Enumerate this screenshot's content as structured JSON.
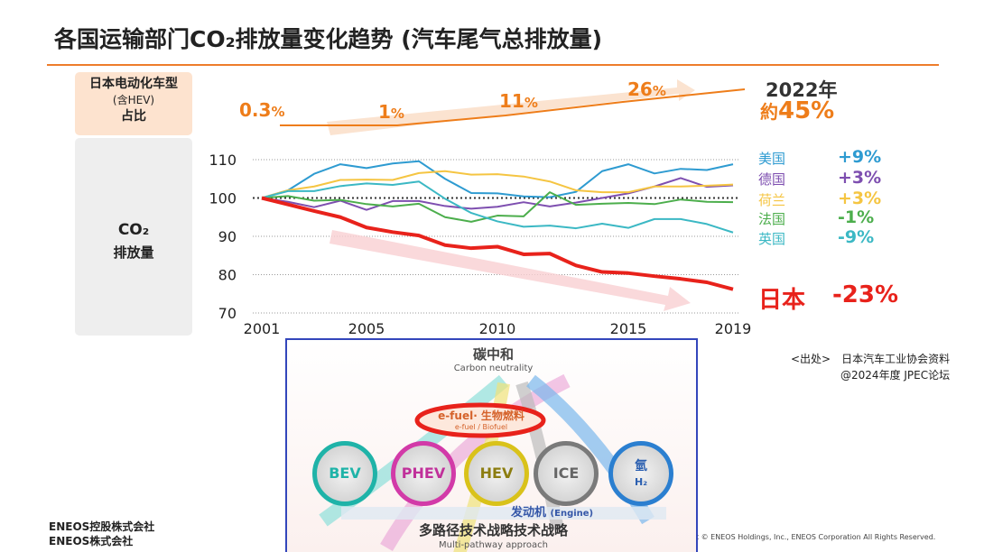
{
  "title": "各国运输部门CO₂排放量变化趋势 (汽车尾气总排放量)",
  "share_panel": {
    "label_line1": "日本电动化车型",
    "label_line2": "(含HEV)",
    "label_line3": "占比",
    "milestones": [
      {
        "value": "0.3",
        "unit": "%"
      },
      {
        "value": "1",
        "unit": "%"
      },
      {
        "value": "11",
        "unit": "%"
      },
      {
        "value": "26",
        "unit": "%"
      }
    ],
    "final_year": "2022年",
    "final_prefix": "約",
    "final_value": "45%"
  },
  "co2_panel": {
    "label_line1": "CO₂",
    "label_line2": "排放量"
  },
  "chart_data": {
    "type": "line",
    "xlim": [
      2001,
      2019
    ],
    "ylim": [
      70,
      110
    ],
    "x_ticks": [
      "2001",
      "2005",
      "2010",
      "2015",
      "2019"
    ],
    "y_ticks": [
      "110",
      "100",
      "90",
      "80",
      "70"
    ],
    "grid": "horizontal dotted",
    "legend_placement": "right",
    "x": [
      2001,
      2002,
      2003,
      2004,
      2005,
      2006,
      2007,
      2008,
      2009,
      2010,
      2011,
      2012,
      2013,
      2014,
      2015,
      2016,
      2017,
      2018,
      2019
    ],
    "series": [
      {
        "name": "美国",
        "change": "+9%",
        "color": "#2e9bd1",
        "values": [
          100,
          102,
          106.3,
          108.8,
          107.8,
          109,
          109.6,
          105,
          101.3,
          101.2,
          100.4,
          100.2,
          101.6,
          107,
          108.8,
          106.4,
          107.6,
          107.3,
          108.8
        ]
      },
      {
        "name": "德国",
        "change": "+3%",
        "color": "#7e4fb0",
        "values": [
          100,
          99,
          97.6,
          99.3,
          96.9,
          99.2,
          99.2,
          97.9,
          97.2,
          97.7,
          98.9,
          97.8,
          98.8,
          100,
          101.2,
          103,
          105.2,
          102.9,
          103.3
        ]
      },
      {
        "name": "荷兰",
        "change": "+3%",
        "color": "#f5c542",
        "values": [
          100,
          102,
          103,
          104.7,
          104.8,
          104.7,
          106.5,
          107,
          106.1,
          106.2,
          105.6,
          104.3,
          102,
          101.5,
          101.5,
          103,
          103,
          103.2,
          103.5
        ]
      },
      {
        "name": "法国",
        "change": "-1%",
        "color": "#4cae4c",
        "values": [
          100,
          100.5,
          99.3,
          99.5,
          98.4,
          97.8,
          98.5,
          95,
          93.8,
          95.4,
          95.2,
          101.5,
          98.2,
          98.5,
          98.7,
          98.4,
          99.6,
          99,
          98.9
        ]
      },
      {
        "name": "英国",
        "change": "-9%",
        "color": "#3bb8c4",
        "values": [
          100,
          101.8,
          101.8,
          103.1,
          103.8,
          103.4,
          104.3,
          99.8,
          96.1,
          93.9,
          92.5,
          92.8,
          92.1,
          93.3,
          92.2,
          94.5,
          94.5,
          93.2,
          91
        ]
      },
      {
        "name": "日本",
        "change": "-23%",
        "color": "#e8221b",
        "values": [
          100,
          98.3,
          96.6,
          95,
          92.3,
          91.1,
          90.2,
          87.7,
          86.9,
          87.3,
          85.3,
          85.5,
          82.4,
          80.7,
          80.4,
          79.6,
          78.9,
          78,
          76.2
        ]
      }
    ]
  },
  "source": {
    "line1": "<出处>　日本汽车工业协会资料",
    "line2": "@2024年度 JPEC论坛"
  },
  "diagram": {
    "goal": "碳中和",
    "goal_en": "Carbon neutrality",
    "fuel": "e-fuel· 生物燃料",
    "fuel_en": "e-fuel / Biofuel",
    "pathways": [
      {
        "label": "BEV",
        "color": "#1fb3a8"
      },
      {
        "label": "PHEV",
        "color": "#d23aa8"
      },
      {
        "label": "HEV",
        "color": "#d9c21a"
      },
      {
        "label": "ICE",
        "color": "#7a7a7a"
      },
      {
        "label": "氫",
        "sub": "H₂",
        "color": "#2b7fd0"
      }
    ],
    "engine": "发动机",
    "engine_en": "(Engine)",
    "strategy": "多路径技术战略技术战略",
    "strategy_en": "Multi-pathway approach"
  },
  "company": {
    "line1": "ENEOS控股株式会社",
    "line2": "ENEOS株式会社"
  },
  "copyright": "Copyright © ENEOS Holdings, Inc., ENEOS Corporation  All Rights Reserved."
}
